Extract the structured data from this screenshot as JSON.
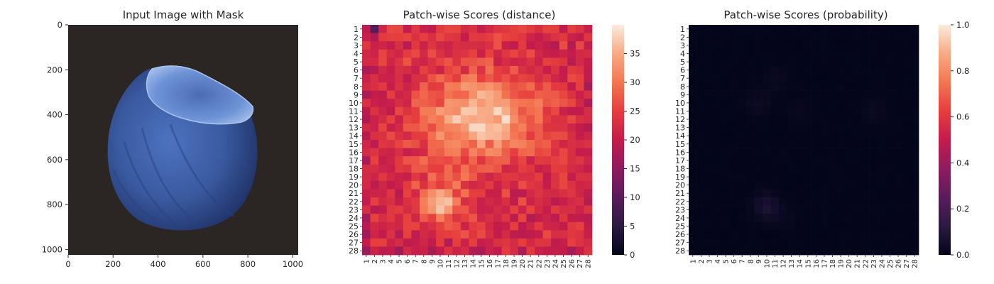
{
  "figure": {
    "panels": [
      {
        "title": "Input Image with Mask"
      },
      {
        "title": "Patch-wise Scores (distance)"
      },
      {
        "title": "Patch-wise Scores (probability)"
      }
    ]
  },
  "chart_data": [
    {
      "type": "image",
      "title": "Input Image with Mask",
      "image": {
        "description_colors": {
          "background": "#2b2523",
          "nut_body": "#3d5fa3",
          "nut_dark": "#1e2f5f",
          "cap": "#6f95d8"
        }
      },
      "xlim": [
        0,
        1024
      ],
      "ylim": [
        1024,
        0
      ],
      "xticks": [
        "0",
        "200",
        "400",
        "600",
        "800",
        "1000"
      ],
      "yticks": [
        "0",
        "200",
        "400",
        "600",
        "800",
        "1000"
      ]
    },
    {
      "type": "heatmap",
      "title": "Patch-wise Scores (distance)",
      "rows": 28,
      "cols": 28,
      "row_labels": [
        "1",
        "2",
        "3",
        "4",
        "5",
        "6",
        "7",
        "8",
        "9",
        "10",
        "11",
        "12",
        "13",
        "14",
        "15",
        "16",
        "17",
        "18",
        "19",
        "20",
        "21",
        "22",
        "23",
        "24",
        "25",
        "26",
        "27",
        "28"
      ],
      "col_labels": [
        "1",
        "2",
        "3",
        "4",
        "5",
        "6",
        "7",
        "8",
        "9",
        "10",
        "11",
        "12",
        "13",
        "14",
        "15",
        "16",
        "17",
        "18",
        "19",
        "20",
        "21",
        "22",
        "23",
        "24",
        "25",
        "26",
        "27",
        "28"
      ],
      "value_range": [
        0,
        40
      ],
      "colormap": "rocket",
      "colorbar_ticks": [
        "0",
        "5",
        "10",
        "15",
        "20",
        "25",
        "30",
        "35"
      ],
      "approx_regions": {
        "border_mean": 22,
        "center_high_blob_rows": [
          7,
          16
        ],
        "center_high_blob_cols": [
          8,
          23
        ],
        "center_peak": 38,
        "lower_blob_rows": [
          21,
          24
        ],
        "lower_blob_cols": [
          8,
          12
        ],
        "lower_peak": 36
      }
    },
    {
      "type": "heatmap",
      "title": "Patch-wise Scores (probability)",
      "rows": 28,
      "cols": 28,
      "row_labels": [
        "1",
        "2",
        "3",
        "4",
        "5",
        "6",
        "7",
        "8",
        "9",
        "10",
        "11",
        "12",
        "13",
        "14",
        "15",
        "16",
        "17",
        "18",
        "19",
        "20",
        "21",
        "22",
        "23",
        "24",
        "25",
        "26",
        "27",
        "28"
      ],
      "col_labels": [
        "1",
        "2",
        "3",
        "4",
        "5",
        "6",
        "7",
        "8",
        "9",
        "10",
        "11",
        "12",
        "13",
        "14",
        "15",
        "16",
        "17",
        "18",
        "19",
        "20",
        "21",
        "22",
        "23",
        "24",
        "25",
        "26",
        "27",
        "28"
      ],
      "value_range": [
        0,
        1
      ],
      "colormap": "rocket",
      "colorbar_ticks": [
        "0.0",
        "0.2",
        "0.4",
        "0.6",
        "0.8",
        "1.0"
      ],
      "approx_values": "near 0 everywhere (max about 0.05)"
    }
  ]
}
